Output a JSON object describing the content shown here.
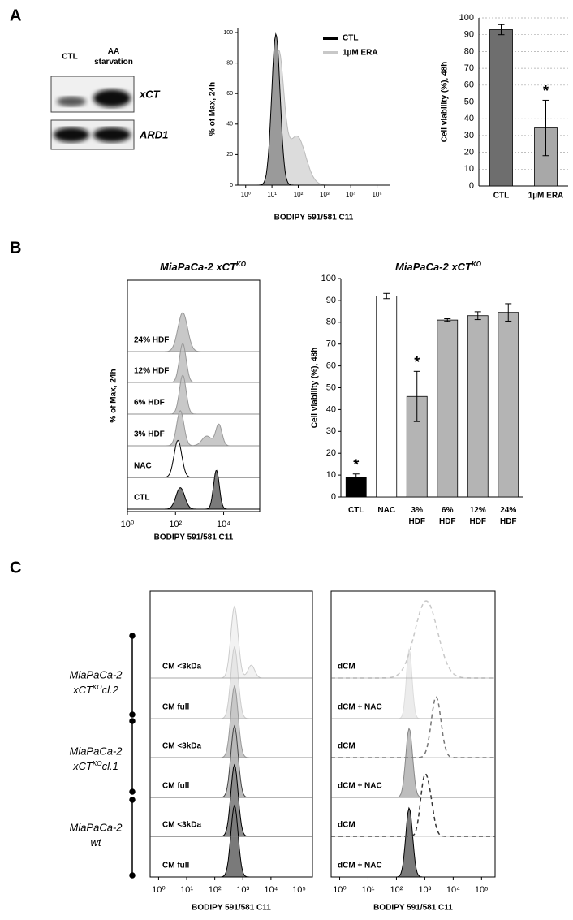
{
  "panel_labels": [
    "A",
    "B",
    "C"
  ],
  "blot": {
    "lanes": [
      "CTL",
      "AA starvation"
    ],
    "bands": [
      "xCT",
      "ARD1"
    ]
  },
  "chart_data": [
    {
      "type": "flow",
      "ylabel": "% of Max, 24h",
      "xlabel": "BODIPY 591/581 C11",
      "xlog": true,
      "xlim": [
        0.5,
        300000
      ],
      "xticks": [
        {
          "value": 1,
          "label": "10⁰"
        },
        {
          "value": 10,
          "label": "10¹"
        },
        {
          "value": 100,
          "label": "10²"
        },
        {
          "value": 1000,
          "label": "10³"
        },
        {
          "value": 10000,
          "label": "10⁴"
        },
        {
          "value": 100000,
          "label": "10⁵"
        }
      ],
      "ylim": [
        0,
        100
      ],
      "yticks": [
        0,
        20,
        40,
        60,
        80,
        100
      ],
      "series": [
        {
          "name": "CTL",
          "color": "#000000"
        },
        {
          "name": "1µM ERA",
          "color": "#c8c8c8"
        }
      ]
    },
    {
      "type": "bar",
      "ylabel": "Cell viability (%), 48h",
      "categories": [
        "CTL",
        "1µM ERA"
      ],
      "values": [
        93,
        34.5
      ],
      "errors": [
        3,
        16.5
      ],
      "colors": [
        "#6e6e6e",
        "#a8a8a8"
      ],
      "significance": [
        null,
        "*"
      ],
      "ylim": [
        0,
        100
      ],
      "yticks": [
        0,
        10,
        20,
        30,
        40,
        50,
        60,
        70,
        80,
        90,
        100
      ],
      "grid": true
    },
    {
      "type": "flow",
      "title": "MiaPaCa-2 xCT",
      "title_superscript": "KO",
      "ylabel": "% of Max, 24h",
      "xlabel": "BODIPY 591/581 C11",
      "xlog": true,
      "xlim": [
        1,
        316228
      ],
      "xticks": [
        {
          "value": 1,
          "label": "10⁰"
        },
        {
          "value": 100,
          "label": "10²"
        },
        {
          "value": 10000,
          "label": "10⁴"
        }
      ],
      "lanes": [
        "24% HDF",
        "12% HDF",
        "6% HDF",
        "3% HDF",
        "NAC",
        "CTL"
      ]
    },
    {
      "type": "bar",
      "title": "MiaPaCa-2 xCT",
      "title_superscript": "KO",
      "ylabel": "Cell viability (%), 48h",
      "categories": [
        "CTL",
        "NAC",
        "3% HDF",
        "6% HDF",
        "12% HDF",
        "24% HDF"
      ],
      "values": [
        9,
        92,
        46,
        81,
        83,
        84.5
      ],
      "errors": [
        1.5,
        1.2,
        11.5,
        0.6,
        1.8,
        4
      ],
      "colors": [
        "#000000",
        "#ffffff",
        "#b4b4b4",
        "#b4b4b4",
        "#b4b4b4",
        "#b4b4b4"
      ],
      "significance": [
        "*",
        null,
        "*",
        null,
        null,
        null
      ],
      "ylim": [
        0,
        100
      ],
      "yticks": [
        0,
        10,
        20,
        30,
        40,
        50,
        60,
        70,
        80,
        90,
        100
      ],
      "grid": false
    },
    {
      "type": "flow",
      "xlabel": "BODIPY 591/581 C11",
      "xlog": true,
      "xlim": [
        0.5,
        300000
      ],
      "xticks": [
        {
          "value": 1,
          "label": "10⁰"
        },
        {
          "value": 10,
          "label": "10¹"
        },
        {
          "value": 100,
          "label": "10²"
        },
        {
          "value": 1000,
          "label": "10³"
        },
        {
          "value": 10000,
          "label": "10⁴"
        },
        {
          "value": 100000,
          "label": "10⁵"
        }
      ],
      "lanes": [
        "CM <3kDa",
        "CM full",
        "CM <3kDa",
        "CM full",
        "CM <3kDa",
        "CM full"
      ]
    },
    {
      "type": "flow",
      "xlabel": "BODIPY 591/581 C11",
      "xlog": true,
      "xlim": [
        0.5,
        300000
      ],
      "xticks": [
        {
          "value": 1,
          "label": "10⁰"
        },
        {
          "value": 10,
          "label": "10¹"
        },
        {
          "value": 100,
          "label": "10²"
        },
        {
          "value": 1000,
          "label": "10³"
        },
        {
          "value": 10000,
          "label": "10⁴"
        },
        {
          "value": 100000,
          "label": "10⁵"
        }
      ],
      "lanes": [
        "dCM",
        "dCM + NAC",
        "dCM",
        "dCM + NAC",
        "dCM",
        "dCM + NAC"
      ]
    }
  ],
  "groups": [
    {
      "name": "MiaPaCa-2",
      "gene": "xCT",
      "superscript": "KO",
      "clone": "cl.2"
    },
    {
      "name": "MiaPaCa-2",
      "gene": "xCT",
      "superscript": "KO",
      "clone": "cl.1"
    },
    {
      "name": "MiaPaCa-2",
      "clone": "wt"
    }
  ]
}
